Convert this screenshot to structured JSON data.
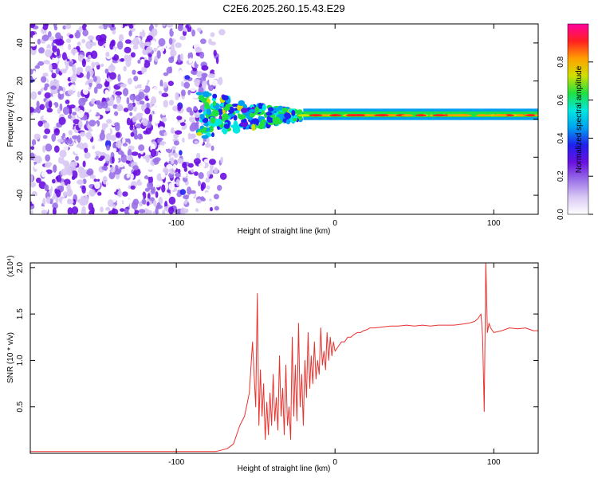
{
  "figure": {
    "title": "C2E6.2025.260.15.43.E29"
  },
  "chart_data": [
    {
      "type": "heatmap",
      "xlabel": "Height of straight line (km)",
      "ylabel": "Frequency (Hz)",
      "xlim": [
        -192,
        128
      ],
      "ylim": [
        -50,
        50
      ],
      "x_ticks": [
        -100,
        0,
        100
      ],
      "x_tick_labels": [
        "-100",
        "0",
        "100"
      ],
      "y_ticks": [
        -40,
        -20,
        0,
        20,
        40
      ],
      "y_tick_labels": [
        "-40",
        "-20",
        "0",
        "20",
        "40"
      ],
      "grid": false,
      "legend": "none",
      "colorbar": {
        "label": "Normalized spectral amplitude",
        "range": [
          0,
          1
        ],
        "ticks": [
          0,
          0.2,
          0.4,
          0.6,
          0.8
        ],
        "tick_labels": [
          "0.0",
          "0.2",
          "0.4",
          "0.6",
          "0.8"
        ],
        "colors": [
          "#ffffff",
          "#d8c8f4",
          "#9a70e8",
          "#6a10e0",
          "#2020f0",
          "#00a0f0",
          "#00e8e0",
          "#20e040",
          "#d0e000",
          "#ffa000",
          "#ff2020",
          "#ff00a0"
        ]
      },
      "features": {
        "noise_region_x": [
          -192,
          -68
        ],
        "transition_region_x": [
          -86,
          -20
        ],
        "signal_band_x": [
          -20,
          128
        ],
        "signal_band_frequency_hz": [
          1,
          4
        ],
        "signal_band_peak_frequency_hz": 2
      }
    },
    {
      "type": "line",
      "xlabel": "Height of straight line (km)",
      "ylabel": "SNR (10 * v/v)",
      "y_scale_label": "(x10⁴)",
      "xlim": [
        -192,
        128
      ],
      "ylim": [
        0,
        2.05
      ],
      "x_ticks": [
        -100,
        0,
        100
      ],
      "x_tick_labels": [
        "-100",
        "0",
        "100"
      ],
      "y_ticks": [
        0.5,
        1.0,
        1.5,
        2.0
      ],
      "y_tick_labels": [
        "0.5",
        "1.0",
        "1.5",
        "2.0"
      ],
      "grid": false,
      "legend": "none",
      "color": "#e8322e",
      "series": [
        {
          "x": [
            -192,
            -170,
            -150,
            -130,
            -110,
            -90,
            -75,
            -68,
            -64,
            -60,
            -57,
            -54,
            -52,
            -50,
            -49,
            -48,
            -47,
            -46,
            -45,
            -44,
            -43,
            -42,
            -41,
            -40,
            -39,
            -38,
            -37,
            -36,
            -35,
            -34,
            -33,
            -32,
            -31,
            -30,
            -29,
            -28,
            -27,
            -26,
            -25,
            -24,
            -23,
            -22,
            -21,
            -20,
            -19,
            -18,
            -17,
            -16,
            -15,
            -14,
            -13,
            -12,
            -11,
            -10,
            -9,
            -8,
            -7,
            -6,
            -5,
            -4,
            -3,
            -2,
            -1,
            0,
            2,
            4,
            6,
            8,
            10,
            12,
            14,
            16,
            18,
            20,
            22,
            25,
            30,
            35,
            40,
            45,
            50,
            55,
            60,
            65,
            70,
            75,
            80,
            84,
            88,
            90,
            92,
            93,
            94,
            95,
            96,
            97,
            98,
            100,
            105,
            110,
            115,
            120,
            125,
            128
          ],
          "y": [
            0.02,
            0.02,
            0.02,
            0.02,
            0.02,
            0.02,
            0.02,
            0.05,
            0.1,
            0.3,
            0.4,
            0.65,
            1.2,
            0.5,
            1.72,
            0.3,
            0.9,
            0.4,
            0.75,
            0.15,
            0.55,
            0.2,
            0.65,
            0.3,
            0.85,
            0.35,
            0.6,
            0.25,
            1.05,
            0.4,
            0.7,
            0.2,
            0.95,
            0.3,
            0.5,
            0.15,
            1.25,
            0.4,
            0.95,
            0.35,
            1.4,
            0.5,
            0.85,
            0.3,
            1.0,
            0.6,
            1.3,
            0.7,
            1.05,
            0.75,
            1.2,
            0.8,
            1.0,
            0.85,
            1.35,
            0.95,
            1.1,
            0.9,
            1.3,
            1.0,
            1.25,
            1.05,
            1.2,
            1.1,
            1.15,
            1.2,
            1.2,
            1.25,
            1.25,
            1.28,
            1.3,
            1.3,
            1.32,
            1.33,
            1.35,
            1.35,
            1.36,
            1.37,
            1.37,
            1.38,
            1.37,
            1.38,
            1.37,
            1.38,
            1.38,
            1.38,
            1.39,
            1.4,
            1.42,
            1.45,
            1.5,
            1.25,
            0.45,
            2.06,
            1.3,
            1.4,
            1.35,
            1.3,
            1.32,
            1.35,
            1.34,
            1.35,
            1.32,
            1.32
          ]
        }
      ]
    }
  ]
}
